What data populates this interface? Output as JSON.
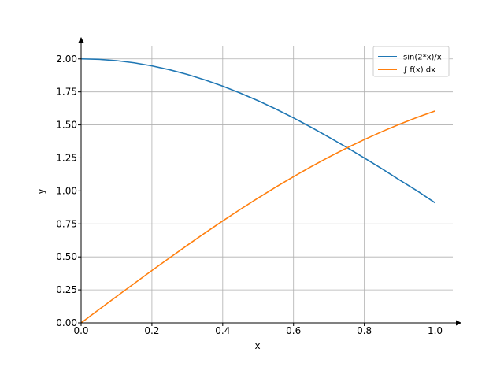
{
  "chart_data": {
    "type": "line",
    "title": "",
    "xlabel": "x",
    "ylabel": "y",
    "xlim": [
      0.0,
      1.05
    ],
    "ylim": [
      0.0,
      2.1
    ],
    "xticks": [
      0.0,
      0.2,
      0.4,
      0.6,
      0.8,
      1.0
    ],
    "xtick_labels": [
      "0.0",
      "0.2",
      "0.4",
      "0.6",
      "0.8",
      "1.0"
    ],
    "yticks": [
      0.0,
      0.25,
      0.5,
      0.75,
      1.0,
      1.25,
      1.5,
      1.75,
      2.0
    ],
    "ytick_labels": [
      "0.00",
      "0.25",
      "0.50",
      "0.75",
      "1.00",
      "1.25",
      "1.50",
      "1.75",
      "2.00"
    ],
    "grid": true,
    "legend_position": "top-right",
    "series": [
      {
        "name": "sin(2*x)/x",
        "color": "#1f77b4",
        "x": [
          0.0,
          0.05,
          0.1,
          0.15,
          0.2,
          0.25,
          0.3,
          0.35,
          0.4,
          0.45,
          0.5,
          0.55,
          0.6,
          0.65,
          0.7,
          0.75,
          0.8,
          0.85,
          0.9,
          0.95,
          1.0
        ],
        "y": [
          2.0,
          1.9967,
          1.9867,
          1.9702,
          1.9471,
          1.9177,
          1.8821,
          1.8405,
          1.7934,
          1.7407,
          1.6829,
          1.6204,
          1.5532,
          1.4818,
          1.4067,
          1.33,
          1.2493,
          1.1673,
          1.0819,
          0.9991,
          0.9093
        ]
      },
      {
        "name": "∫ f(x) dx",
        "color": "#ff7f0e",
        "x": [
          0.0,
          0.05,
          0.1,
          0.15,
          0.2,
          0.25,
          0.3,
          0.35,
          0.4,
          0.45,
          0.5,
          0.55,
          0.6,
          0.65,
          0.7,
          0.75,
          0.8,
          0.85,
          0.9,
          0.95,
          1.0
        ],
        "y": [
          0.0,
          0.0999,
          0.1996,
          0.2985,
          0.3965,
          0.4931,
          0.5882,
          0.6813,
          0.7721,
          0.8605,
          0.9461,
          1.0287,
          1.1081,
          1.1839,
          1.2561,
          1.3245,
          1.3889,
          1.4493,
          1.5056,
          1.5578,
          1.6054
        ]
      }
    ]
  }
}
